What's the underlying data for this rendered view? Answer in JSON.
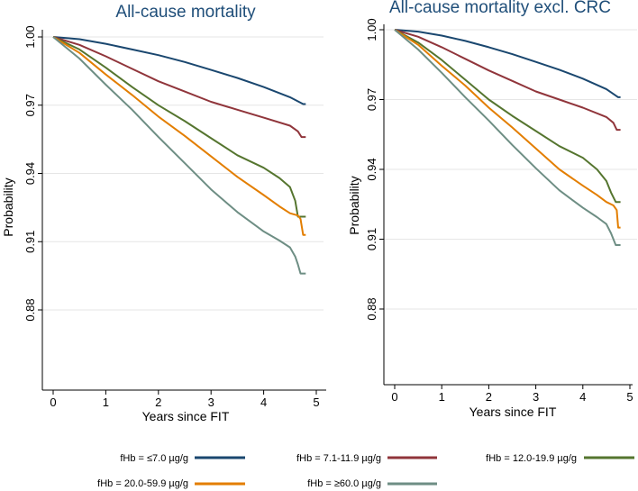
{
  "chart_data": [
    {
      "type": "line",
      "title": "All-cause mortality",
      "xlabel": "Years since FIT",
      "ylabel": "Probability",
      "xlim": [
        0,
        5
      ],
      "ylim": [
        0.85,
        1.0
      ],
      "xticks": [
        "0",
        "1",
        "2",
        "3",
        "4",
        "5"
      ],
      "yticks": [
        "0.88",
        "0.91",
        "0.94",
        "0.97",
        "1.00"
      ],
      "series": [
        {
          "name": "fHb = ≤7.0 µg/g",
          "x": [
            0,
            0.5,
            1,
            1.5,
            2,
            2.5,
            3,
            3.5,
            4,
            4.5,
            4.75,
            4.8
          ],
          "y": [
            1.0,
            0.999,
            0.997,
            0.9945,
            0.992,
            0.989,
            0.9855,
            0.982,
            0.978,
            0.9735,
            0.9705,
            0.9705
          ]
        },
        {
          "name": "fHb = 7.1-11.9 µg/g",
          "x": [
            0,
            0.5,
            1,
            1.5,
            2,
            2.5,
            3,
            3.5,
            4,
            4.5,
            4.65,
            4.72,
            4.8
          ],
          "y": [
            1.0,
            0.9965,
            0.9915,
            0.986,
            0.9805,
            0.976,
            0.9715,
            0.968,
            0.9645,
            0.961,
            0.9585,
            0.956,
            0.956
          ]
        },
        {
          "name": "fHb = 12.0-19.9 µg/g",
          "x": [
            0,
            0.5,
            1,
            1.5,
            2,
            2.5,
            3,
            3.5,
            4,
            4.3,
            4.5,
            4.6,
            4.65,
            4.8
          ],
          "y": [
            1.0,
            0.9945,
            0.9865,
            0.978,
            0.97,
            0.963,
            0.9555,
            0.948,
            0.9425,
            0.938,
            0.934,
            0.928,
            0.921,
            0.921
          ]
        },
        {
          "name": "fHb = 20.0-59.9 µg/g",
          "x": [
            0,
            0.5,
            1,
            1.5,
            2,
            2.5,
            3,
            3.5,
            4,
            4.3,
            4.5,
            4.65,
            4.7,
            4.75,
            4.8
          ],
          "y": [
            1.0,
            0.993,
            0.9835,
            0.9745,
            0.965,
            0.9565,
            0.9475,
            0.9385,
            0.9305,
            0.9255,
            0.9225,
            0.9215,
            0.92,
            0.913,
            0.913
          ]
        },
        {
          "name": "fHb = ≥60.0 µg/g",
          "x": [
            0,
            0.5,
            1,
            1.5,
            2,
            2.5,
            3,
            3.5,
            4,
            4.3,
            4.5,
            4.6,
            4.65,
            4.7,
            4.8
          ],
          "y": [
            1.0,
            0.9905,
            0.979,
            0.968,
            0.956,
            0.9445,
            0.933,
            0.923,
            0.9145,
            0.9105,
            0.9075,
            0.9035,
            0.9,
            0.896,
            0.896
          ]
        }
      ]
    },
    {
      "type": "line",
      "title": "All-cause mortality excl. CRC",
      "xlabel": "Years since FIT",
      "ylabel": "Probability",
      "xlim": [
        0,
        5
      ],
      "ylim": [
        0.85,
        1.0
      ],
      "xticks": [
        "0",
        "1",
        "2",
        "3",
        "4",
        "5"
      ],
      "yticks": [
        "0.88",
        "0.91",
        "0.94",
        "0.97",
        "1.00"
      ],
      "series": [
        {
          "name": "fHb = ≤7.0 µg/g",
          "x": [
            0,
            0.5,
            1,
            1.5,
            2,
            2.5,
            3,
            3.5,
            4,
            4.5,
            4.75,
            4.8
          ],
          "y": [
            1.0,
            0.9992,
            0.9975,
            0.9952,
            0.9925,
            0.9895,
            0.9862,
            0.9828,
            0.979,
            0.9745,
            0.971,
            0.971
          ]
        },
        {
          "name": "fHb = 7.1-11.9 µg/g",
          "x": [
            0,
            0.5,
            1,
            1.5,
            2,
            2.5,
            3,
            3.5,
            4,
            4.5,
            4.65,
            4.72,
            4.8
          ],
          "y": [
            1.0,
            0.997,
            0.9925,
            0.9875,
            0.9825,
            0.978,
            0.9735,
            0.97,
            0.9665,
            0.9625,
            0.96,
            0.957,
            0.957
          ]
        },
        {
          "name": "fHb = 12.0-19.9 µg/g",
          "x": [
            0,
            0.5,
            1,
            1.5,
            2,
            2.5,
            3,
            3.5,
            4,
            4.3,
            4.5,
            4.6,
            4.7,
            4.8
          ],
          "y": [
            1.0,
            0.9945,
            0.987,
            0.9785,
            0.97,
            0.963,
            0.9565,
            0.95,
            0.945,
            0.94,
            0.935,
            0.93,
            0.926,
            0.926
          ]
        },
        {
          "name": "fHb = 20.0-59.9 µg/g",
          "x": [
            0,
            0.5,
            1,
            1.5,
            2,
            2.5,
            3,
            3.5,
            4,
            4.3,
            4.5,
            4.65,
            4.72,
            4.75,
            4.8
          ],
          "y": [
            1.0,
            0.9935,
            0.9845,
            0.976,
            0.9665,
            0.958,
            0.949,
            0.94,
            0.933,
            0.929,
            0.926,
            0.9245,
            0.9225,
            0.915,
            0.915
          ]
        },
        {
          "name": "fHb = ≥60.0 µg/g",
          "x": [
            0,
            0.5,
            1,
            1.5,
            2,
            2.5,
            3,
            3.5,
            4,
            4.3,
            4.5,
            4.6,
            4.7,
            4.8
          ],
          "y": [
            1.0,
            0.9915,
            0.9815,
            0.971,
            0.961,
            0.9505,
            0.9405,
            0.931,
            0.9235,
            0.9195,
            0.9165,
            0.9125,
            0.9075,
            0.9075
          ]
        }
      ]
    }
  ],
  "legend": [
    {
      "label": "fHb = ≤7.0 µg/g",
      "color": "#1a476f"
    },
    {
      "label": "fHb = 7.1-11.9 µg/g",
      "color": "#90353b"
    },
    {
      "label": "fHb = 12.0-19.9 µg/g",
      "color": "#55752f"
    },
    {
      "label": "fHb = 20.0-59.9 µg/g",
      "color": "#e37e00"
    },
    {
      "label": "fHb = ≥60.0 µg/g",
      "color": "#6e8e84"
    }
  ]
}
